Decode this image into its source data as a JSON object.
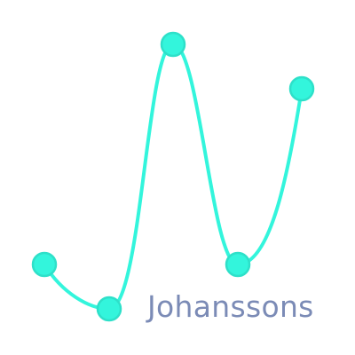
{
  "logo": {
    "wordmark": "Johanssons",
    "colors": {
      "line": "#33f5dc",
      "node_fill": "#33f5dc",
      "node_stroke": "#2ee0c9",
      "wordmark": "#7b8bb6",
      "background": "#ffffff"
    }
  }
}
